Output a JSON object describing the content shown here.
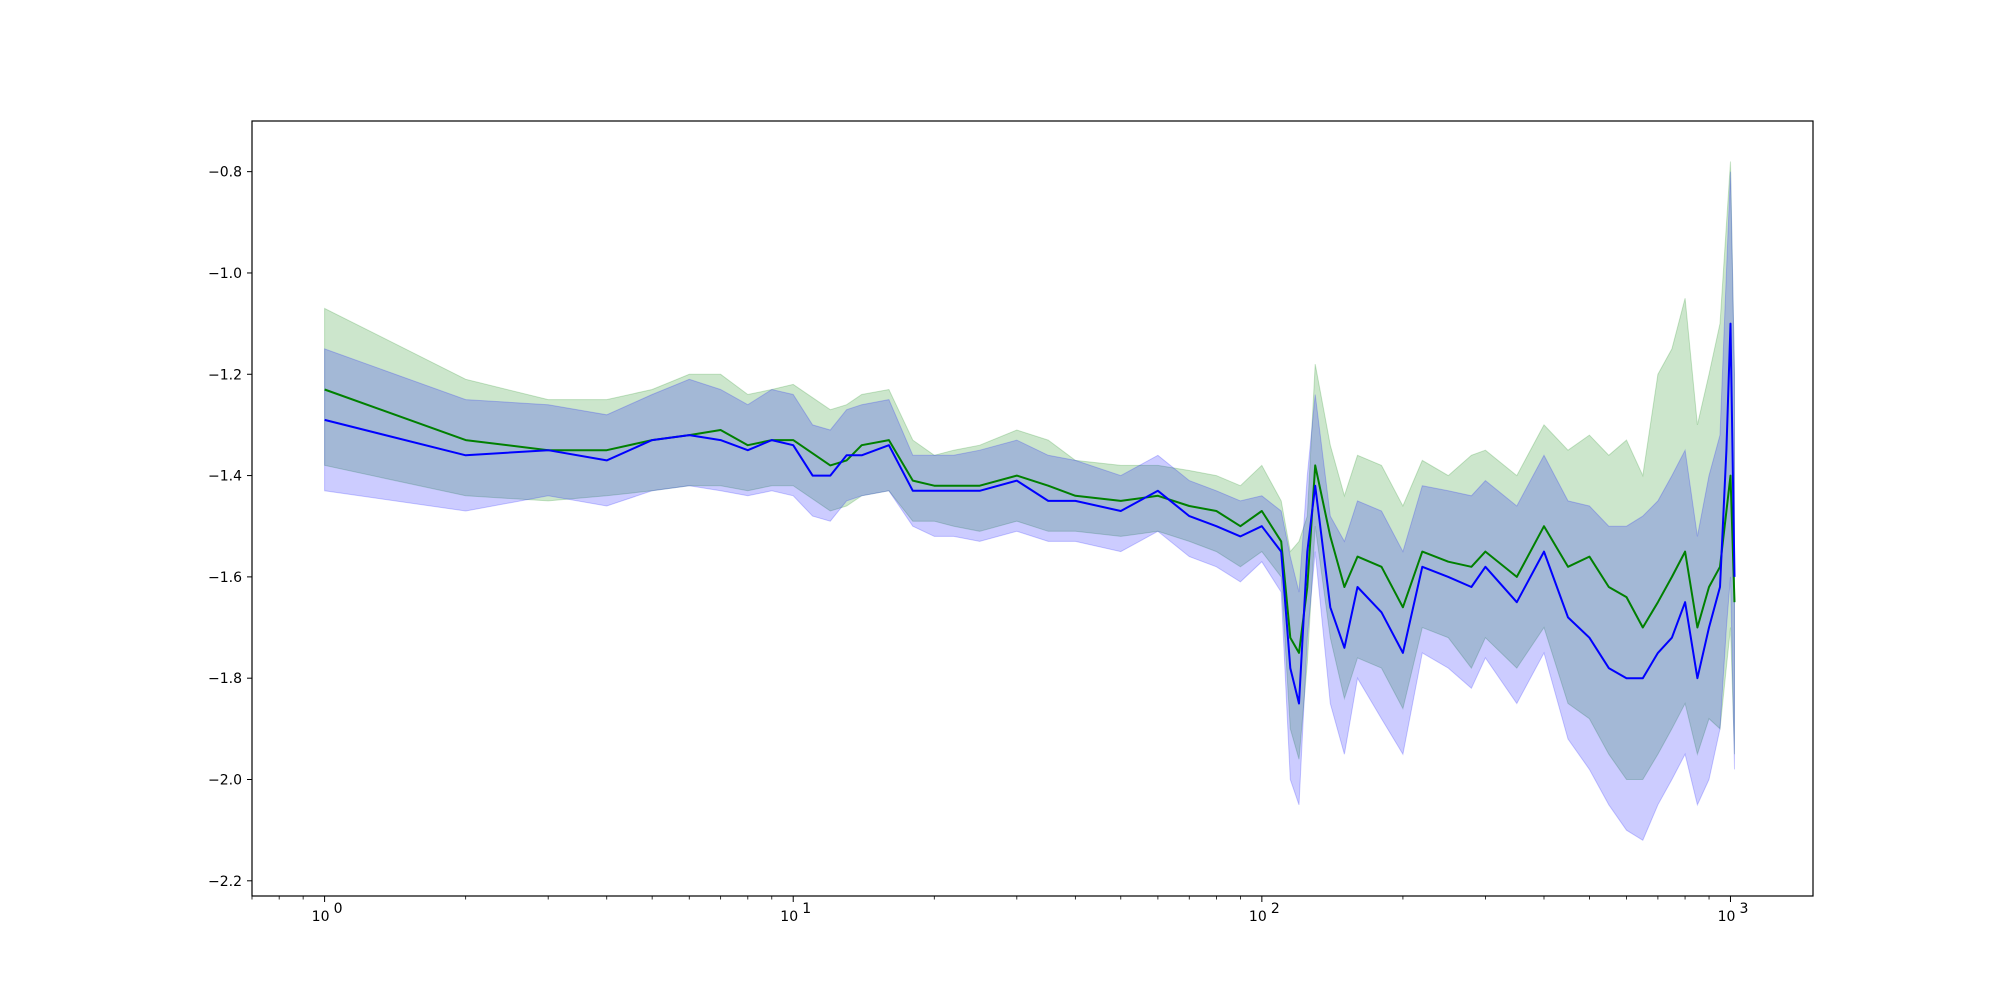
{
  "chart_data": {
    "type": "line",
    "title": "",
    "xlabel": "",
    "ylabel": "",
    "xscale": "log",
    "xlim": [
      0.7,
      1500
    ],
    "ylim": [
      -2.23,
      -0.7
    ],
    "grid": false,
    "legend": "none",
    "x_ticks": [
      {
        "value": 1,
        "base": "10",
        "exp": "0"
      },
      {
        "value": 10,
        "base": "10",
        "exp": "1"
      },
      {
        "value": 100,
        "base": "10",
        "exp": "2"
      },
      {
        "value": 1000,
        "base": "10",
        "exp": "3"
      }
    ],
    "y_ticks": [
      {
        "value": -0.8,
        "label": "−0.8"
      },
      {
        "value": -1.0,
        "label": "−1.0"
      },
      {
        "value": -1.2,
        "label": "−1.2"
      },
      {
        "value": -1.4,
        "label": "−1.4"
      },
      {
        "value": -1.6,
        "label": "−1.6"
      },
      {
        "value": -1.8,
        "label": "−1.8"
      },
      {
        "value": -2.0,
        "label": "−2.0"
      },
      {
        "value": -2.2,
        "label": "−2.2"
      }
    ],
    "series": [
      {
        "color": "#008000",
        "band_color": "#008000",
        "band_opacity": 0.2,
        "x": [
          1,
          2,
          3,
          4,
          5,
          6,
          7,
          8,
          9,
          10,
          12,
          13,
          14,
          16,
          18,
          20,
          22,
          25,
          30,
          35,
          40,
          50,
          60,
          70,
          80,
          90,
          100,
          110,
          115,
          120,
          125,
          130,
          140,
          150,
          160,
          180,
          200,
          220,
          250,
          280,
          300,
          350,
          400,
          450,
          500,
          550,
          600,
          650,
          700,
          750,
          800,
          850,
          900,
          950,
          1000,
          1020
        ],
        "mean": [
          -1.23,
          -1.33,
          -1.35,
          -1.35,
          -1.33,
          -1.32,
          -1.31,
          -1.34,
          -1.33,
          -1.33,
          -1.38,
          -1.37,
          -1.34,
          -1.33,
          -1.41,
          -1.42,
          -1.42,
          -1.42,
          -1.4,
          -1.42,
          -1.44,
          -1.45,
          -1.44,
          -1.46,
          -1.47,
          -1.5,
          -1.47,
          -1.53,
          -1.72,
          -1.75,
          -1.62,
          -1.38,
          -1.52,
          -1.62,
          -1.56,
          -1.58,
          -1.66,
          -1.55,
          -1.57,
          -1.58,
          -1.55,
          -1.6,
          -1.5,
          -1.58,
          -1.56,
          -1.62,
          -1.64,
          -1.7,
          -1.65,
          -1.6,
          -1.55,
          -1.7,
          -1.62,
          -1.58,
          -1.4,
          -1.65
        ],
        "lower": [
          -1.38,
          -1.44,
          -1.45,
          -1.44,
          -1.43,
          -1.42,
          -1.42,
          -1.43,
          -1.42,
          -1.42,
          -1.47,
          -1.46,
          -1.44,
          -1.43,
          -1.49,
          -1.49,
          -1.5,
          -1.51,
          -1.49,
          -1.51,
          -1.51,
          -1.52,
          -1.51,
          -1.53,
          -1.55,
          -1.58,
          -1.55,
          -1.6,
          -1.9,
          -1.96,
          -1.77,
          -1.5,
          -1.72,
          -1.84,
          -1.76,
          -1.78,
          -1.86,
          -1.7,
          -1.72,
          -1.78,
          -1.72,
          -1.78,
          -1.7,
          -1.85,
          -1.88,
          -1.95,
          -2.0,
          -2.0,
          -1.95,
          -1.9,
          -1.85,
          -1.95,
          -1.88,
          -1.9,
          -1.7,
          -1.95
        ],
        "upper": [
          -1.07,
          -1.21,
          -1.25,
          -1.25,
          -1.23,
          -1.2,
          -1.2,
          -1.24,
          -1.23,
          -1.22,
          -1.27,
          -1.26,
          -1.24,
          -1.23,
          -1.33,
          -1.36,
          -1.35,
          -1.34,
          -1.31,
          -1.33,
          -1.37,
          -1.38,
          -1.38,
          -1.39,
          -1.4,
          -1.42,
          -1.38,
          -1.45,
          -1.55,
          -1.53,
          -1.48,
          -1.18,
          -1.34,
          -1.44,
          -1.36,
          -1.38,
          -1.46,
          -1.37,
          -1.4,
          -1.36,
          -1.35,
          -1.4,
          -1.3,
          -1.35,
          -1.32,
          -1.36,
          -1.33,
          -1.4,
          -1.2,
          -1.15,
          -1.05,
          -1.3,
          -1.2,
          -1.1,
          -0.78,
          -1.2
        ]
      },
      {
        "color": "#0000ff",
        "band_color": "#0000ff",
        "band_opacity": 0.2,
        "x": [
          1,
          2,
          3,
          4,
          5,
          6,
          7,
          8,
          9,
          10,
          11,
          12,
          13,
          14,
          16,
          18,
          20,
          22,
          25,
          30,
          35,
          40,
          50,
          60,
          70,
          80,
          90,
          100,
          110,
          115,
          120,
          125,
          130,
          140,
          150,
          160,
          180,
          200,
          220,
          250,
          280,
          300,
          350,
          400,
          450,
          500,
          550,
          600,
          650,
          700,
          750,
          800,
          850,
          900,
          950,
          980,
          1000,
          1020
        ],
        "mean": [
          -1.29,
          -1.36,
          -1.35,
          -1.37,
          -1.33,
          -1.32,
          -1.33,
          -1.35,
          -1.33,
          -1.34,
          -1.4,
          -1.4,
          -1.36,
          -1.36,
          -1.34,
          -1.43,
          -1.43,
          -1.43,
          -1.43,
          -1.41,
          -1.45,
          -1.45,
          -1.47,
          -1.43,
          -1.48,
          -1.5,
          -1.52,
          -1.5,
          -1.55,
          -1.78,
          -1.85,
          -1.55,
          -1.42,
          -1.66,
          -1.74,
          -1.62,
          -1.67,
          -1.75,
          -1.58,
          -1.6,
          -1.62,
          -1.58,
          -1.65,
          -1.55,
          -1.68,
          -1.72,
          -1.78,
          -1.8,
          -1.8,
          -1.75,
          -1.72,
          -1.65,
          -1.8,
          -1.7,
          -1.62,
          -1.35,
          -1.1,
          -1.6
        ],
        "lower": [
          -1.43,
          -1.47,
          -1.44,
          -1.46,
          -1.43,
          -1.42,
          -1.43,
          -1.44,
          -1.43,
          -1.44,
          -1.48,
          -1.49,
          -1.45,
          -1.44,
          -1.43,
          -1.5,
          -1.52,
          -1.52,
          -1.53,
          -1.51,
          -1.53,
          -1.53,
          -1.55,
          -1.51,
          -1.56,
          -1.58,
          -1.61,
          -1.57,
          -1.63,
          -2.0,
          -2.05,
          -1.72,
          -1.55,
          -1.85,
          -1.95,
          -1.8,
          -1.88,
          -1.95,
          -1.75,
          -1.78,
          -1.82,
          -1.76,
          -1.85,
          -1.75,
          -1.92,
          -1.98,
          -2.05,
          -2.1,
          -2.12,
          -2.05,
          -2.0,
          -1.95,
          -2.05,
          -2.0,
          -1.9,
          -1.7,
          -1.6,
          -1.98
        ],
        "upper": [
          -1.15,
          -1.25,
          -1.26,
          -1.28,
          -1.24,
          -1.21,
          -1.23,
          -1.26,
          -1.23,
          -1.24,
          -1.3,
          -1.31,
          -1.27,
          -1.26,
          -1.25,
          -1.36,
          -1.36,
          -1.36,
          -1.35,
          -1.33,
          -1.36,
          -1.37,
          -1.4,
          -1.36,
          -1.41,
          -1.43,
          -1.45,
          -1.44,
          -1.47,
          -1.56,
          -1.63,
          -1.4,
          -1.24,
          -1.48,
          -1.53,
          -1.45,
          -1.47,
          -1.55,
          -1.42,
          -1.43,
          -1.44,
          -1.41,
          -1.46,
          -1.36,
          -1.45,
          -1.46,
          -1.5,
          -1.5,
          -1.48,
          -1.45,
          -1.4,
          -1.35,
          -1.52,
          -1.4,
          -1.32,
          -1.0,
          -0.8,
          -1.2
        ]
      }
    ]
  }
}
